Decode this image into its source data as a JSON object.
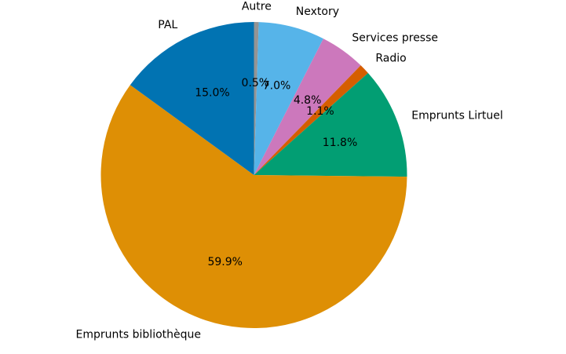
{
  "chart_data": {
    "type": "pie",
    "start_angle_deg": 90,
    "direction": "clockwise",
    "slices": [
      {
        "label": "Autre",
        "value": 0.5,
        "pct_label": "0.5%",
        "color": "#949494"
      },
      {
        "label": "Nextory",
        "value": 7.0,
        "pct_label": "7.0%",
        "color": "#56b4e9"
      },
      {
        "label": "Services presse",
        "value": 4.8,
        "pct_label": "4.8%",
        "color": "#cc78bc"
      },
      {
        "label": "Radio",
        "value": 1.1,
        "pct_label": "1.1%",
        "color": "#d55e00"
      },
      {
        "label": "Emprunts Lirtuel",
        "value": 11.8,
        "pct_label": "11.8%",
        "color": "#029e73"
      },
      {
        "label": "Emprunts bibliothèque",
        "value": 59.9,
        "pct_label": "59.9%",
        "color": "#de8f05"
      },
      {
        "label": "PAL",
        "value": 15.0,
        "pct_label": "15.0%",
        "color": "#0173b2"
      }
    ]
  }
}
